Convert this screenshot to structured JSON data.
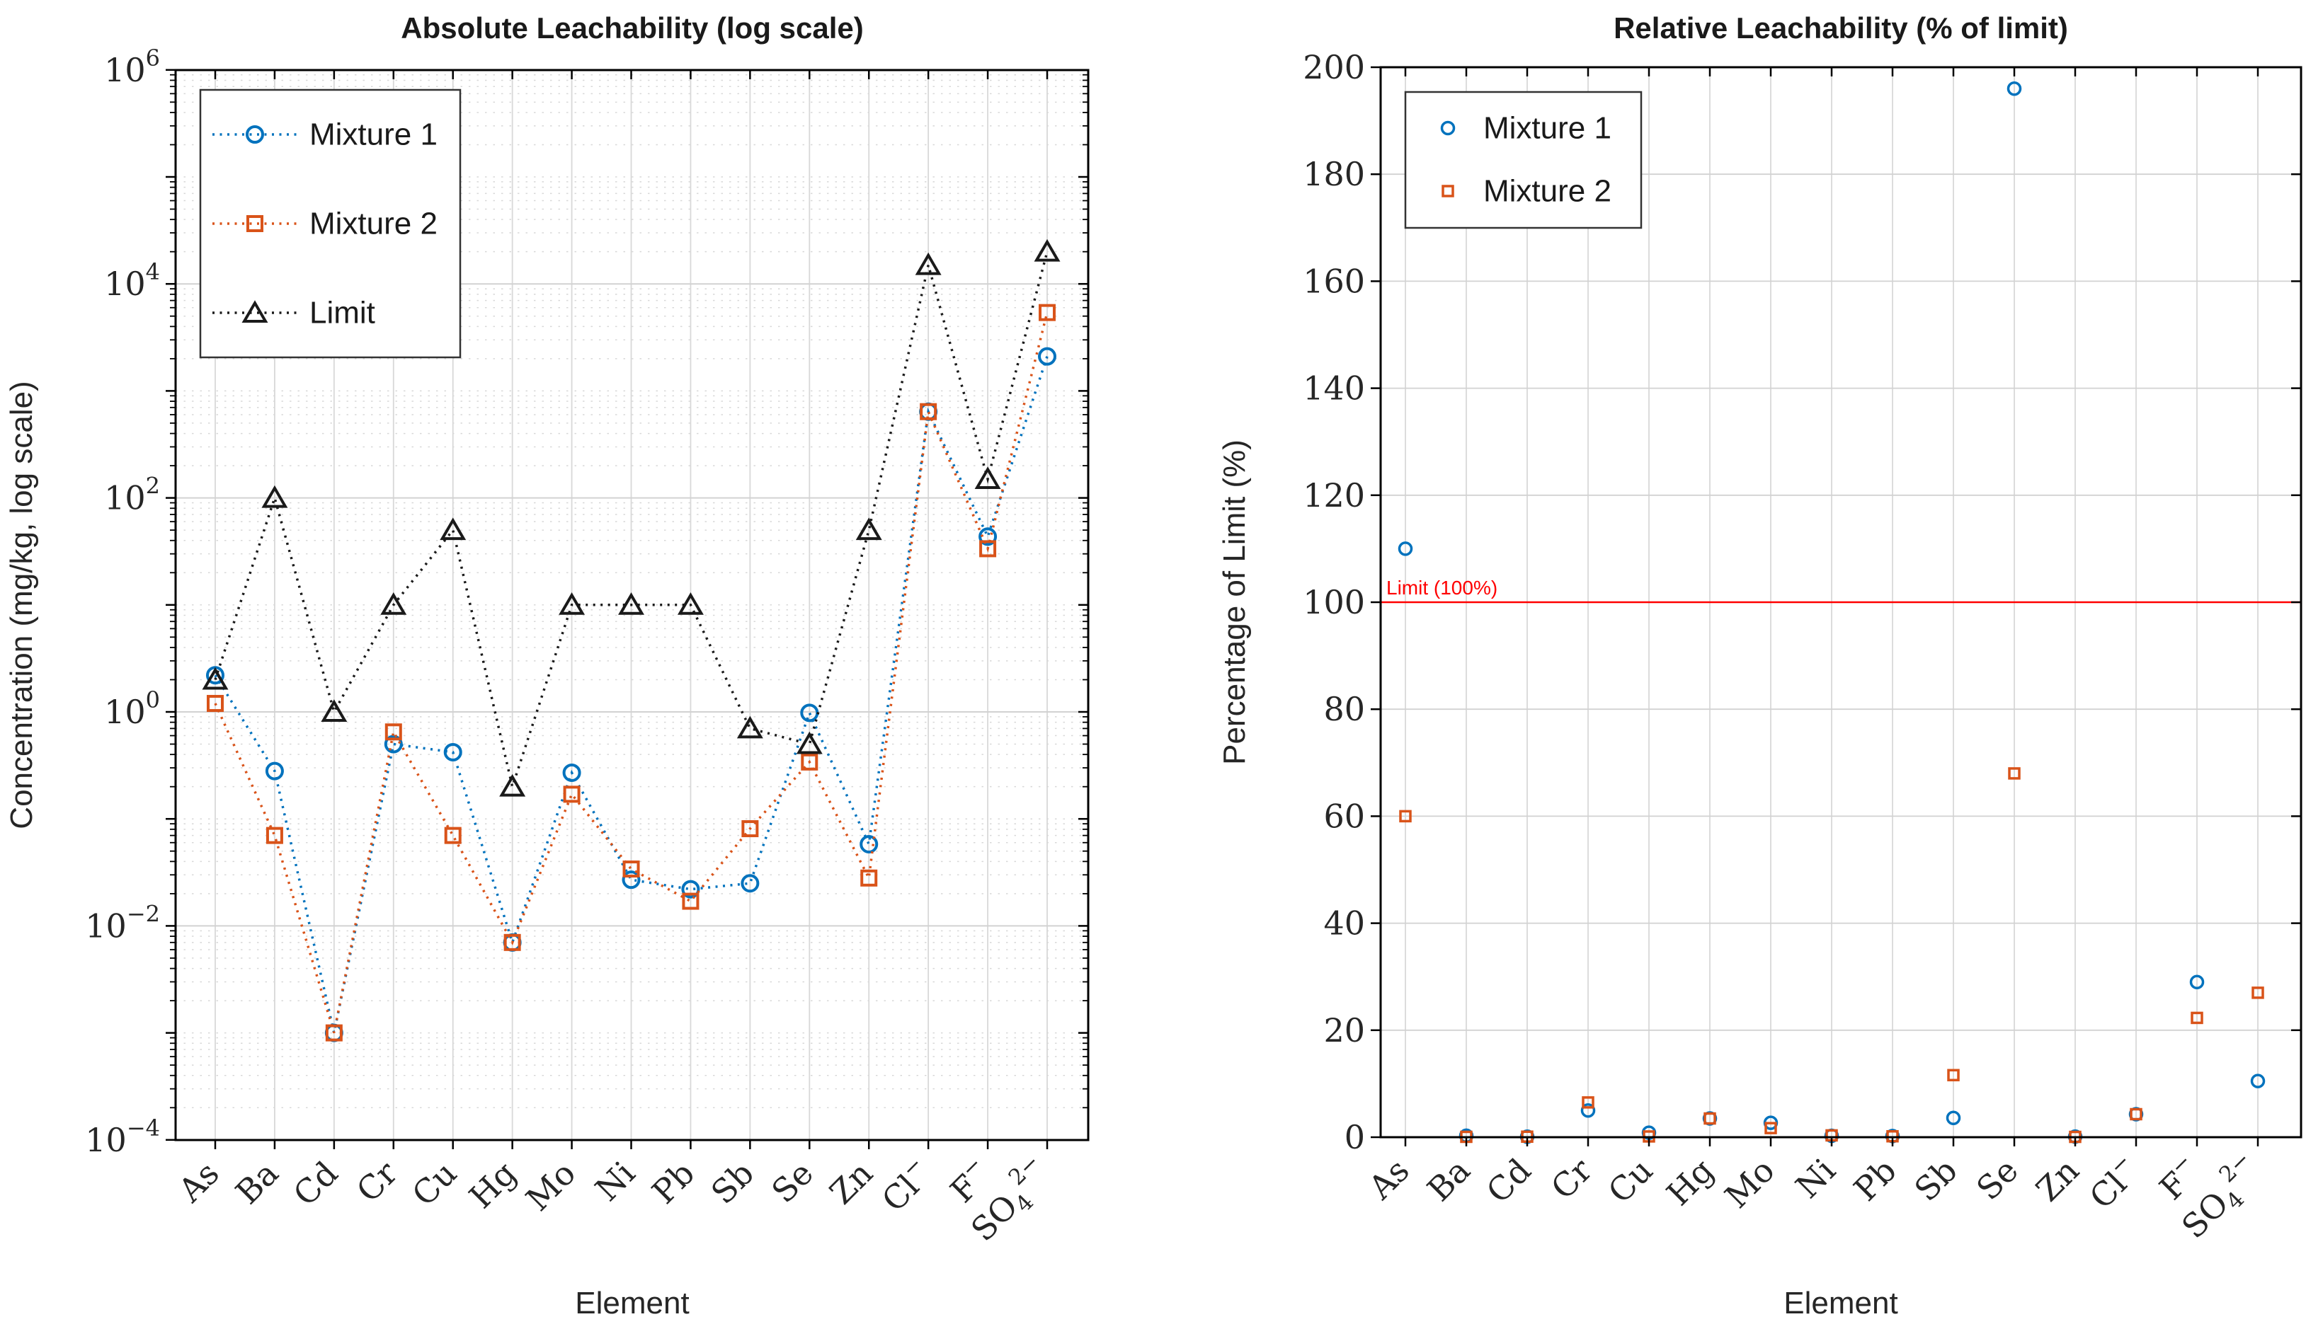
{
  "figure": {
    "background": "#ffffff",
    "accent_colors": {
      "mixture1": "#0072BD",
      "mixture2": "#D95319",
      "limit_series": "#1a1a1a",
      "reference_line": "#FF0000",
      "grid_major": "#d2d2d2",
      "grid_minor": "#d8d8d8",
      "axis": "#000000"
    }
  },
  "elements_rich": [
    {
      "base": "As"
    },
    {
      "base": "Ba"
    },
    {
      "base": "Cd"
    },
    {
      "base": "Cr"
    },
    {
      "base": "Cu"
    },
    {
      "base": "Hg"
    },
    {
      "base": "Mo"
    },
    {
      "base": "Ni"
    },
    {
      "base": "Pb"
    },
    {
      "base": "Sb"
    },
    {
      "base": "Se"
    },
    {
      "base": "Zn"
    },
    {
      "base": "Cl",
      "sup": "−"
    },
    {
      "base": "F",
      "sup": "−"
    },
    {
      "base": "SO",
      "sub": "4",
      "sup": "2−"
    }
  ],
  "chart_data": [
    {
      "type": "line",
      "title": "Absolute Leachability (log scale)",
      "xlabel": "Element",
      "ylabel": "Concentration (mg/kg, log scale)",
      "y_scale": "log",
      "ylim": [
        0.0001,
        1000000
      ],
      "ytick_exponents": [
        6,
        4,
        2,
        0,
        -2,
        -4
      ],
      "grid": "major+minor",
      "legend_position": "upper-left",
      "categories": [
        "As",
        "Ba",
        "Cd",
        "Cr",
        "Cu",
        "Hg",
        "Mo",
        "Ni",
        "Pb",
        "Sb",
        "Se",
        "Zn",
        "Cl-",
        "F-",
        "SO4 2-"
      ],
      "series": [
        {
          "name": "Mixture 1",
          "color": "#0072BD",
          "marker": "circle",
          "line": "dotted",
          "values": [
            2.2,
            0.28,
            0.001,
            0.5,
            0.42,
            0.007,
            0.27,
            0.027,
            0.022,
            0.025,
            0.98,
            0.058,
            640,
            43.5,
            2100
          ]
        },
        {
          "name": "Mixture 2",
          "color": "#D95319",
          "marker": "square",
          "line": "dotted",
          "values": [
            1.2,
            0.07,
            0.001,
            0.65,
            0.07,
            0.007,
            0.17,
            0.034,
            0.017,
            0.081,
            0.34,
            0.028,
            640,
            33.5,
            5400
          ]
        },
        {
          "name": "Limit",
          "color": "#1a1a1a",
          "marker": "triangle",
          "line": "dotted",
          "values": [
            2,
            100,
            1,
            10,
            50,
            0.2,
            10,
            10,
            10,
            0.7,
            0.5,
            50,
            15000,
            150,
            20000
          ]
        }
      ]
    },
    {
      "type": "scatter",
      "title": "Relative Leachability (% of limit)",
      "xlabel": "Element",
      "ylabel": "Percentage of Limit (%)",
      "ylim": [
        0,
        200
      ],
      "yticks": [
        0,
        20,
        40,
        60,
        80,
        100,
        120,
        140,
        160,
        180,
        200
      ],
      "grid": "major",
      "legend_position": "upper-left",
      "ref_line": {
        "value": 100,
        "label": "Limit (100%)",
        "color": "#FF0000"
      },
      "categories": [
        "As",
        "Ba",
        "Cd",
        "Cr",
        "Cu",
        "Hg",
        "Mo",
        "Ni",
        "Pb",
        "Sb",
        "Se",
        "Zn",
        "Cl-",
        "F-",
        "SO4 2-"
      ],
      "series": [
        {
          "name": "Mixture 1",
          "color": "#0072BD",
          "marker": "circle",
          "values": [
            110,
            0.28,
            0.1,
            5,
            0.84,
            3.5,
            2.7,
            0.27,
            0.22,
            3.6,
            196,
            0.12,
            4.3,
            29,
            10.5
          ]
        },
        {
          "name": "Mixture 2",
          "color": "#D95319",
          "marker": "square",
          "values": [
            60,
            0.07,
            0.1,
            6.5,
            0.14,
            3.5,
            1.7,
            0.34,
            0.17,
            11.6,
            68,
            0.06,
            4.3,
            22.3,
            27
          ]
        }
      ]
    }
  ]
}
